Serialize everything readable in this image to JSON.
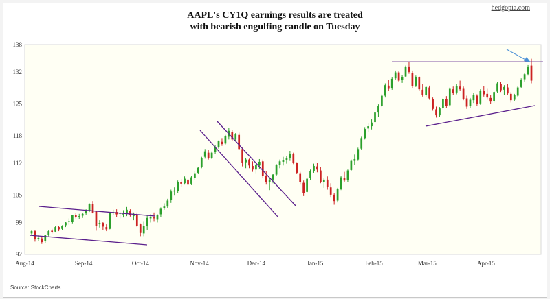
{
  "header": {
    "title_line1": "AAPL's CY1Q earnings results are treated",
    "title_line2": "with bearish engulfing candle on Tuesday",
    "brand": "hedgopia.com"
  },
  "footer": {
    "source": "Source: StockCharts"
  },
  "chart_data": {
    "type": "candlestick",
    "title": "AAPL's CY1Q earnings results are treated with bearish engulfing candle on Tuesday",
    "ylim": [
      92,
      138
    ],
    "y_ticks": [
      "92",
      "99",
      "105",
      "112",
      "118",
      "125",
      "132",
      "138"
    ],
    "x_ticks": [
      "Aug-14",
      "Sep-14",
      "Oct-14",
      "Nov-14",
      "Dec-14",
      "Jan-15",
      "Feb-15",
      "Mar-15",
      "Apr-15"
    ],
    "x_range": [
      "2014-08-01",
      "2015-04-30"
    ],
    "grid": false,
    "colors": {
      "up": "#2ca02c",
      "down": "#cc2222",
      "trendline": "#5a1f8c",
      "arrow": "#4a8fd6"
    },
    "series": [
      {
        "values": [
          [
            96.6,
            97.4,
            96.2,
            97.1
          ],
          [
            97.1,
            97.4,
            94.8,
            95.3
          ],
          [
            95.6,
            96.3,
            95.0,
            95.6
          ],
          [
            95.5,
            96.0,
            94.3,
            94.7
          ],
          [
            94.9,
            96.3,
            94.5,
            96.2
          ],
          [
            96.3,
            97.4,
            96.0,
            97.1
          ],
          [
            97.2,
            97.6,
            96.6,
            96.9
          ],
          [
            97.0,
            98.2,
            96.8,
            98.0
          ],
          [
            98.0,
            98.3,
            97.1,
            97.5
          ],
          [
            97.6,
            98.4,
            97.3,
            98.2
          ],
          [
            98.4,
            99.2,
            98.0,
            99.0
          ],
          [
            99.1,
            99.9,
            98.5,
            99.3
          ],
          [
            99.2,
            100.7,
            98.8,
            100.6
          ],
          [
            100.6,
            101.1,
            99.9,
            100.2
          ],
          [
            100.4,
            100.9,
            99.8,
            100.4
          ],
          [
            100.5,
            101.1,
            100.0,
            100.9
          ],
          [
            101.0,
            101.9,
            100.6,
            101.6
          ],
          [
            101.6,
            103.2,
            101.3,
            103.0
          ],
          [
            103.0,
            103.7,
            101.0,
            101.1
          ],
          [
            101.4,
            101.5,
            97.2,
            98.2
          ],
          [
            98.7,
            99.5,
            97.9,
            98.9
          ],
          [
            98.9,
            99.2,
            97.3,
            98.1
          ],
          [
            98.0,
            98.6,
            97.1,
            97.5
          ],
          [
            97.6,
            101.2,
            97.5,
            101.1
          ],
          [
            101.2,
            101.8,
            100.6,
            101.3
          ],
          [
            101.3,
            101.9,
            100.2,
            100.8
          ],
          [
            100.9,
            101.3,
            99.9,
            101.1
          ],
          [
            100.9,
            101.7,
            100.1,
            100.9
          ],
          [
            101.1,
            102.4,
            100.4,
            101.8
          ],
          [
            101.6,
            101.9,
            100.3,
            100.7
          ],
          [
            100.4,
            101.2,
            99.5,
            100.9
          ],
          [
            100.8,
            101.2,
            98.0,
            98.2
          ],
          [
            98.6,
            98.8,
            96.0,
            96.7
          ],
          [
            96.6,
            99.3,
            96.0,
            98.3
          ],
          [
            98.3,
            100.7,
            97.3,
            100.0
          ],
          [
            99.9,
            100.8,
            99.0,
            100.2
          ],
          [
            100.1,
            101.2,
            99.3,
            99.9
          ],
          [
            99.6,
            100.8,
            99.0,
            100.6
          ],
          [
            100.8,
            102.3,
            100.2,
            102.0
          ],
          [
            102.2,
            103.2,
            101.8,
            102.5
          ],
          [
            102.5,
            104.2,
            102.2,
            103.8
          ],
          [
            103.9,
            106.2,
            103.3,
            105.8
          ],
          [
            105.8,
            106.7,
            104.9,
            106.0
          ],
          [
            105.9,
            108.2,
            105.5,
            107.9
          ],
          [
            107.8,
            108.5,
            106.8,
            107.5
          ],
          [
            107.6,
            109.1,
            107.3,
            108.6
          ],
          [
            108.4,
            108.8,
            107.0,
            107.3
          ],
          [
            107.5,
            109.2,
            107.2,
            108.9
          ],
          [
            108.7,
            110.2,
            108.3,
            109.8
          ],
          [
            109.9,
            111.2,
            109.6,
            111.0
          ],
          [
            111.1,
            113.4,
            110.9,
            113.2
          ],
          [
            113.4,
            115.1,
            113.0,
            114.6
          ],
          [
            114.3,
            114.9,
            112.8,
            113.1
          ],
          [
            113.2,
            114.6,
            112.9,
            114.3
          ],
          [
            114.4,
            115.9,
            114.0,
            115.6
          ],
          [
            115.5,
            117.0,
            115.2,
            116.8
          ],
          [
            116.7,
            117.5,
            115.8,
            116.2
          ],
          [
            116.3,
            118.2,
            116.1,
            117.9
          ],
          [
            117.8,
            119.8,
            117.2,
            119.1
          ],
          [
            118.9,
            119.3,
            116.9,
            117.2
          ],
          [
            117.2,
            118.6,
            116.8,
            118.3
          ],
          [
            118.2,
            118.7,
            115.0,
            115.1
          ],
          [
            115.1,
            115.4,
            111.3,
            112.0
          ],
          [
            112.2,
            113.2,
            110.9,
            112.8
          ],
          [
            112.8,
            113.0,
            110.9,
            111.5
          ],
          [
            111.4,
            112.4,
            110.1,
            110.6
          ],
          [
            110.6,
            111.9,
            109.8,
            111.6
          ],
          [
            111.5,
            112.9,
            110.8,
            112.3
          ],
          [
            112.4,
            112.8,
            108.8,
            109.2
          ],
          [
            109.3,
            110.2,
            107.3,
            107.9
          ],
          [
            107.8,
            108.9,
            106.1,
            108.4
          ],
          [
            108.4,
            109.7,
            107.6,
            109.5
          ],
          [
            109.5,
            111.8,
            109.2,
            111.6
          ],
          [
            111.6,
            112.8,
            110.9,
            112.4
          ],
          [
            112.3,
            113.4,
            111.5,
            112.7
          ],
          [
            112.6,
            113.6,
            111.9,
            113.1
          ],
          [
            113.2,
            114.7,
            112.5,
            114.1
          ],
          [
            114.0,
            114.3,
            111.8,
            112.0
          ],
          [
            112.0,
            112.2,
            109.6,
            109.9
          ],
          [
            109.8,
            110.1,
            107.3,
            107.8
          ],
          [
            107.7,
            108.2,
            104.8,
            105.5
          ],
          [
            105.7,
            108.9,
            105.4,
            108.6
          ],
          [
            108.7,
            110.6,
            108.3,
            110.3
          ],
          [
            110.2,
            111.9,
            109.9,
            111.4
          ],
          [
            111.3,
            112.0,
            110.0,
            110.6
          ],
          [
            110.4,
            111.2,
            107.6,
            107.9
          ],
          [
            107.9,
            108.8,
            106.6,
            108.4
          ],
          [
            108.4,
            109.1,
            106.2,
            106.8
          ],
          [
            106.7,
            107.6,
            104.6,
            105.1
          ],
          [
            105.1,
            105.4,
            102.9,
            103.7
          ],
          [
            103.8,
            106.6,
            103.4,
            106.3
          ],
          [
            106.3,
            109.2,
            106.1,
            108.9
          ],
          [
            108.8,
            110.1,
            107.8,
            108.2
          ],
          [
            108.3,
            110.6,
            107.9,
            110.4
          ],
          [
            110.5,
            112.8,
            110.2,
            112.5
          ],
          [
            112.5,
            113.9,
            111.6,
            112.9
          ],
          [
            112.8,
            115.4,
            112.5,
            115.1
          ],
          [
            115.2,
            117.8,
            114.9,
            117.5
          ],
          [
            117.5,
            119.9,
            117.2,
            119.5
          ],
          [
            119.6,
            120.7,
            118.9,
            120.1
          ],
          [
            120.1,
            121.6,
            119.4,
            120.9
          ],
          [
            121.0,
            123.4,
            120.8,
            123.1
          ],
          [
            123.1,
            124.9,
            122.2,
            124.6
          ],
          [
            124.6,
            127.2,
            124.3,
            126.8
          ],
          [
            126.8,
            129.5,
            126.4,
            129.1
          ],
          [
            129.0,
            130.2,
            127.9,
            128.3
          ],
          [
            128.4,
            130.8,
            128.1,
            130.5
          ],
          [
            130.6,
            132.3,
            130.2,
            131.9
          ],
          [
            131.9,
            132.2,
            129.8,
            130.1
          ],
          [
            130.2,
            131.3,
            129.6,
            130.9
          ],
          [
            131.0,
            133.4,
            130.8,
            133.1
          ],
          [
            133.2,
            134.1,
            131.6,
            132.0
          ],
          [
            131.8,
            132.3,
            128.4,
            128.9
          ],
          [
            129.0,
            131.2,
            128.7,
            130.8
          ],
          [
            130.8,
            131.0,
            127.8,
            128.2
          ],
          [
            128.1,
            129.3,
            126.6,
            127.0
          ],
          [
            126.9,
            128.9,
            126.6,
            128.7
          ],
          [
            128.6,
            129.0,
            125.9,
            126.2
          ],
          [
            126.1,
            126.4,
            123.5,
            123.9
          ],
          [
            123.8,
            124.4,
            122.0,
            122.5
          ],
          [
            122.5,
            124.3,
            122.1,
            124.0
          ],
          [
            124.1,
            126.3,
            123.8,
            126.0
          ],
          [
            126.0,
            126.7,
            124.1,
            124.6
          ],
          [
            124.7,
            128.6,
            124.4,
            128.3
          ],
          [
            128.2,
            128.8,
            126.9,
            127.4
          ],
          [
            127.5,
            129.3,
            127.1,
            128.9
          ],
          [
            128.8,
            130.1,
            127.8,
            128.2
          ],
          [
            128.3,
            128.8,
            125.8,
            126.1
          ],
          [
            126.2,
            126.8,
            123.9,
            124.4
          ],
          [
            124.5,
            126.3,
            124.1,
            125.9
          ],
          [
            125.8,
            127.4,
            125.2,
            126.9
          ],
          [
            126.8,
            127.1,
            124.6,
            125.0
          ],
          [
            125.1,
            128.2,
            124.8,
            127.9
          ],
          [
            127.8,
            128.9,
            126.6,
            127.1
          ],
          [
            127.2,
            128.3,
            125.9,
            126.4
          ],
          [
            126.3,
            127.0,
            125.0,
            125.5
          ],
          [
            125.6,
            127.9,
            125.3,
            127.6
          ],
          [
            127.7,
            129.8,
            127.4,
            129.5
          ],
          [
            129.4,
            129.8,
            127.6,
            128.0
          ],
          [
            128.1,
            129.1,
            127.0,
            128.7
          ],
          [
            128.6,
            129.3,
            126.9,
            127.3
          ],
          [
            127.2,
            127.6,
            125.3,
            125.8
          ],
          [
            125.9,
            127.2,
            125.6,
            126.9
          ],
          [
            126.8,
            128.9,
            126.5,
            128.6
          ],
          [
            128.7,
            130.6,
            128.4,
            130.3
          ],
          [
            130.4,
            131.8,
            129.9,
            131.5
          ],
          [
            131.5,
            133.5,
            131.2,
            133.2
          ],
          [
            133.4,
            134.9,
            129.5,
            130.1
          ]
        ]
      }
    ],
    "annotations": {
      "support_resistance_level": 134.2
    }
  }
}
